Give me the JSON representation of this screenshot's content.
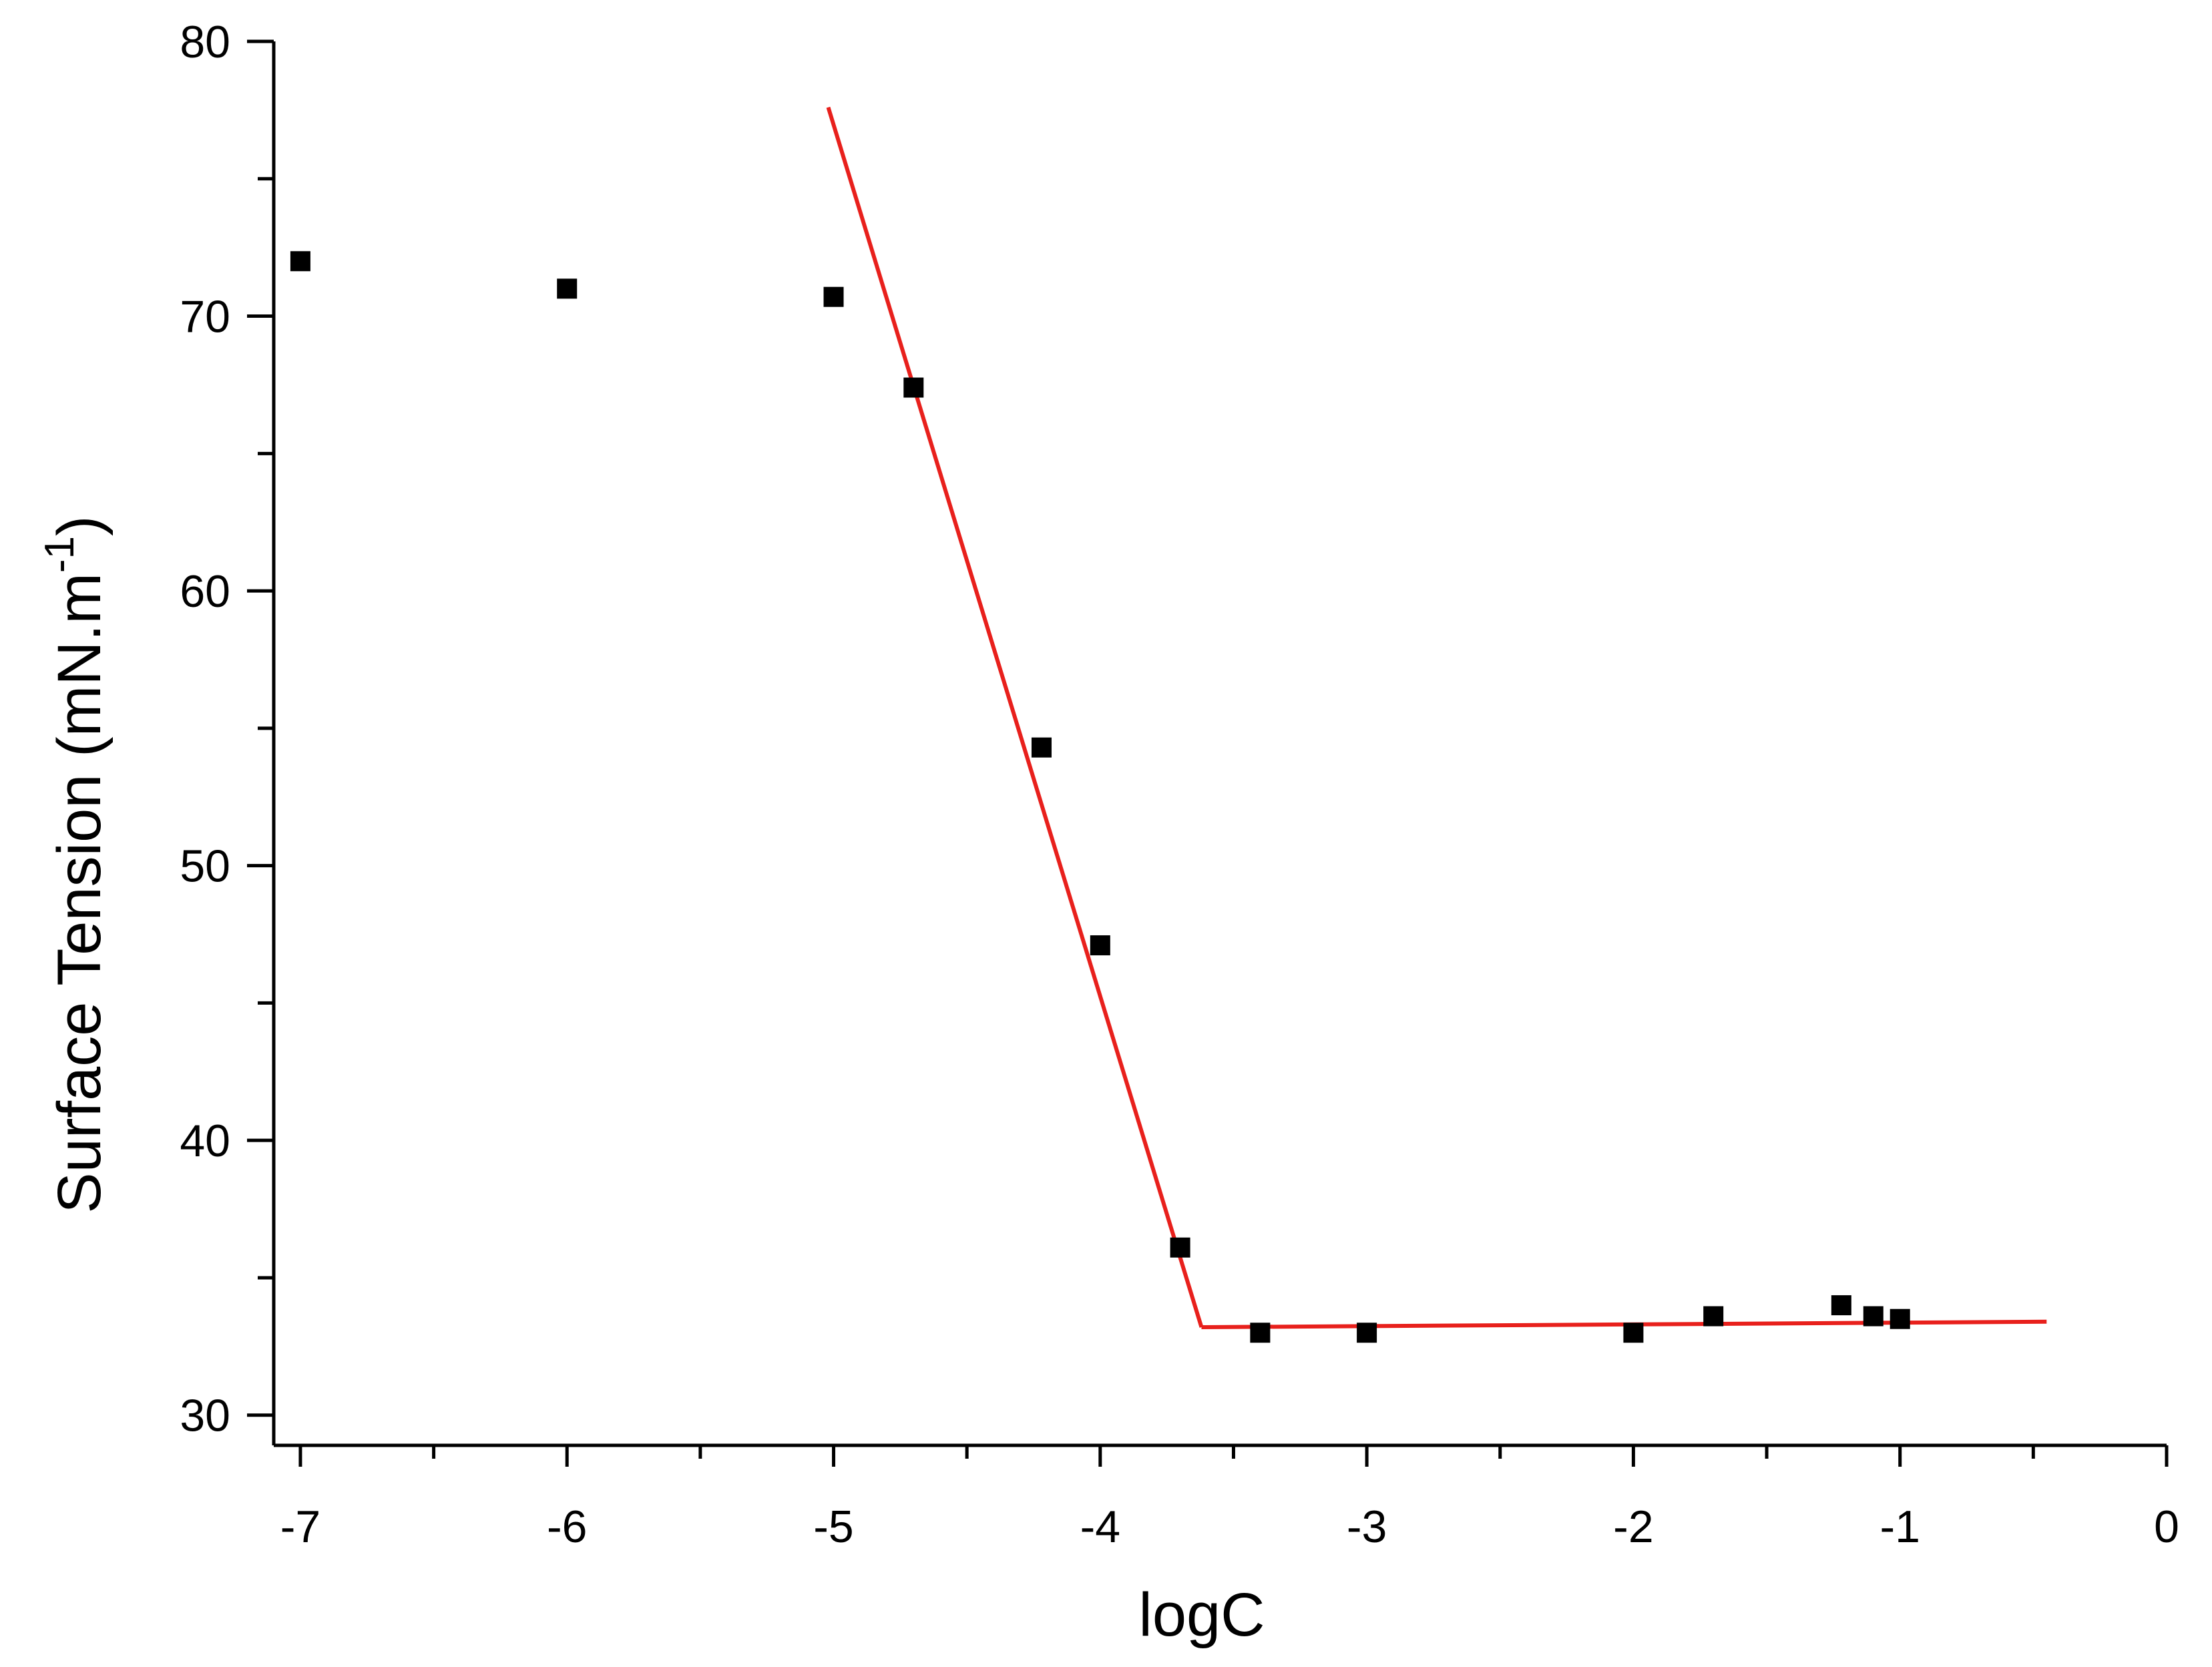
{
  "chart_data": {
    "type": "scatter",
    "title": "",
    "xlabel": "logC",
    "ylabel_main": "Surface Tension (mN.m",
    "ylabel_sup": "-1",
    "ylabel_close": ")",
    "xlim": [
      -7.1,
      0
    ],
    "ylim": [
      28.9,
      80
    ],
    "x_ticks": [
      -7,
      -6,
      -5,
      -4,
      -3,
      -2,
      -1,
      0
    ],
    "x_tick_labels": [
      "-7",
      "-6",
      "-5",
      "-4",
      "-3",
      "-2",
      "-1",
      "0"
    ],
    "x_minor_ticks": [
      -6.5,
      -5.5,
      -4.5,
      -3.5,
      -2.5,
      -1.5,
      -0.5
    ],
    "y_ticks": [
      30,
      40,
      50,
      60,
      70,
      80
    ],
    "y_tick_labels": [
      "30",
      "40",
      "50",
      "60",
      "70",
      "80"
    ],
    "y_minor_ticks": [
      35,
      45,
      55,
      65,
      75
    ],
    "grid": false,
    "series": [
      {
        "kind": "scatter",
        "marker": "square",
        "color": "#000000",
        "points": [
          {
            "x": -7.0,
            "y": 72.0
          },
          {
            "x": -6.0,
            "y": 71.0
          },
          {
            "x": -5.0,
            "y": 70.7
          },
          {
            "x": -4.7,
            "y": 67.4
          },
          {
            "x": -4.22,
            "y": 54.3
          },
          {
            "x": -4.0,
            "y": 47.1
          },
          {
            "x": -3.7,
            "y": 36.1
          },
          {
            "x": -3.4,
            "y": 33.0
          },
          {
            "x": -3.0,
            "y": 33.0
          },
          {
            "x": -2.0,
            "y": 33.0
          },
          {
            "x": -1.7,
            "y": 33.6
          },
          {
            "x": -1.22,
            "y": 34.0
          },
          {
            "x": -1.1,
            "y": 33.6
          },
          {
            "x": -1.0,
            "y": 33.5
          }
        ]
      },
      {
        "kind": "line",
        "color": "#e8201c",
        "points": [
          {
            "x": -5.02,
            "y": 77.6
          },
          {
            "x": -3.62,
            "y": 33.2
          }
        ]
      },
      {
        "kind": "line",
        "color": "#e8201c",
        "points": [
          {
            "x": -3.62,
            "y": 33.2
          },
          {
            "x": -0.45,
            "y": 33.4
          }
        ]
      }
    ]
  }
}
